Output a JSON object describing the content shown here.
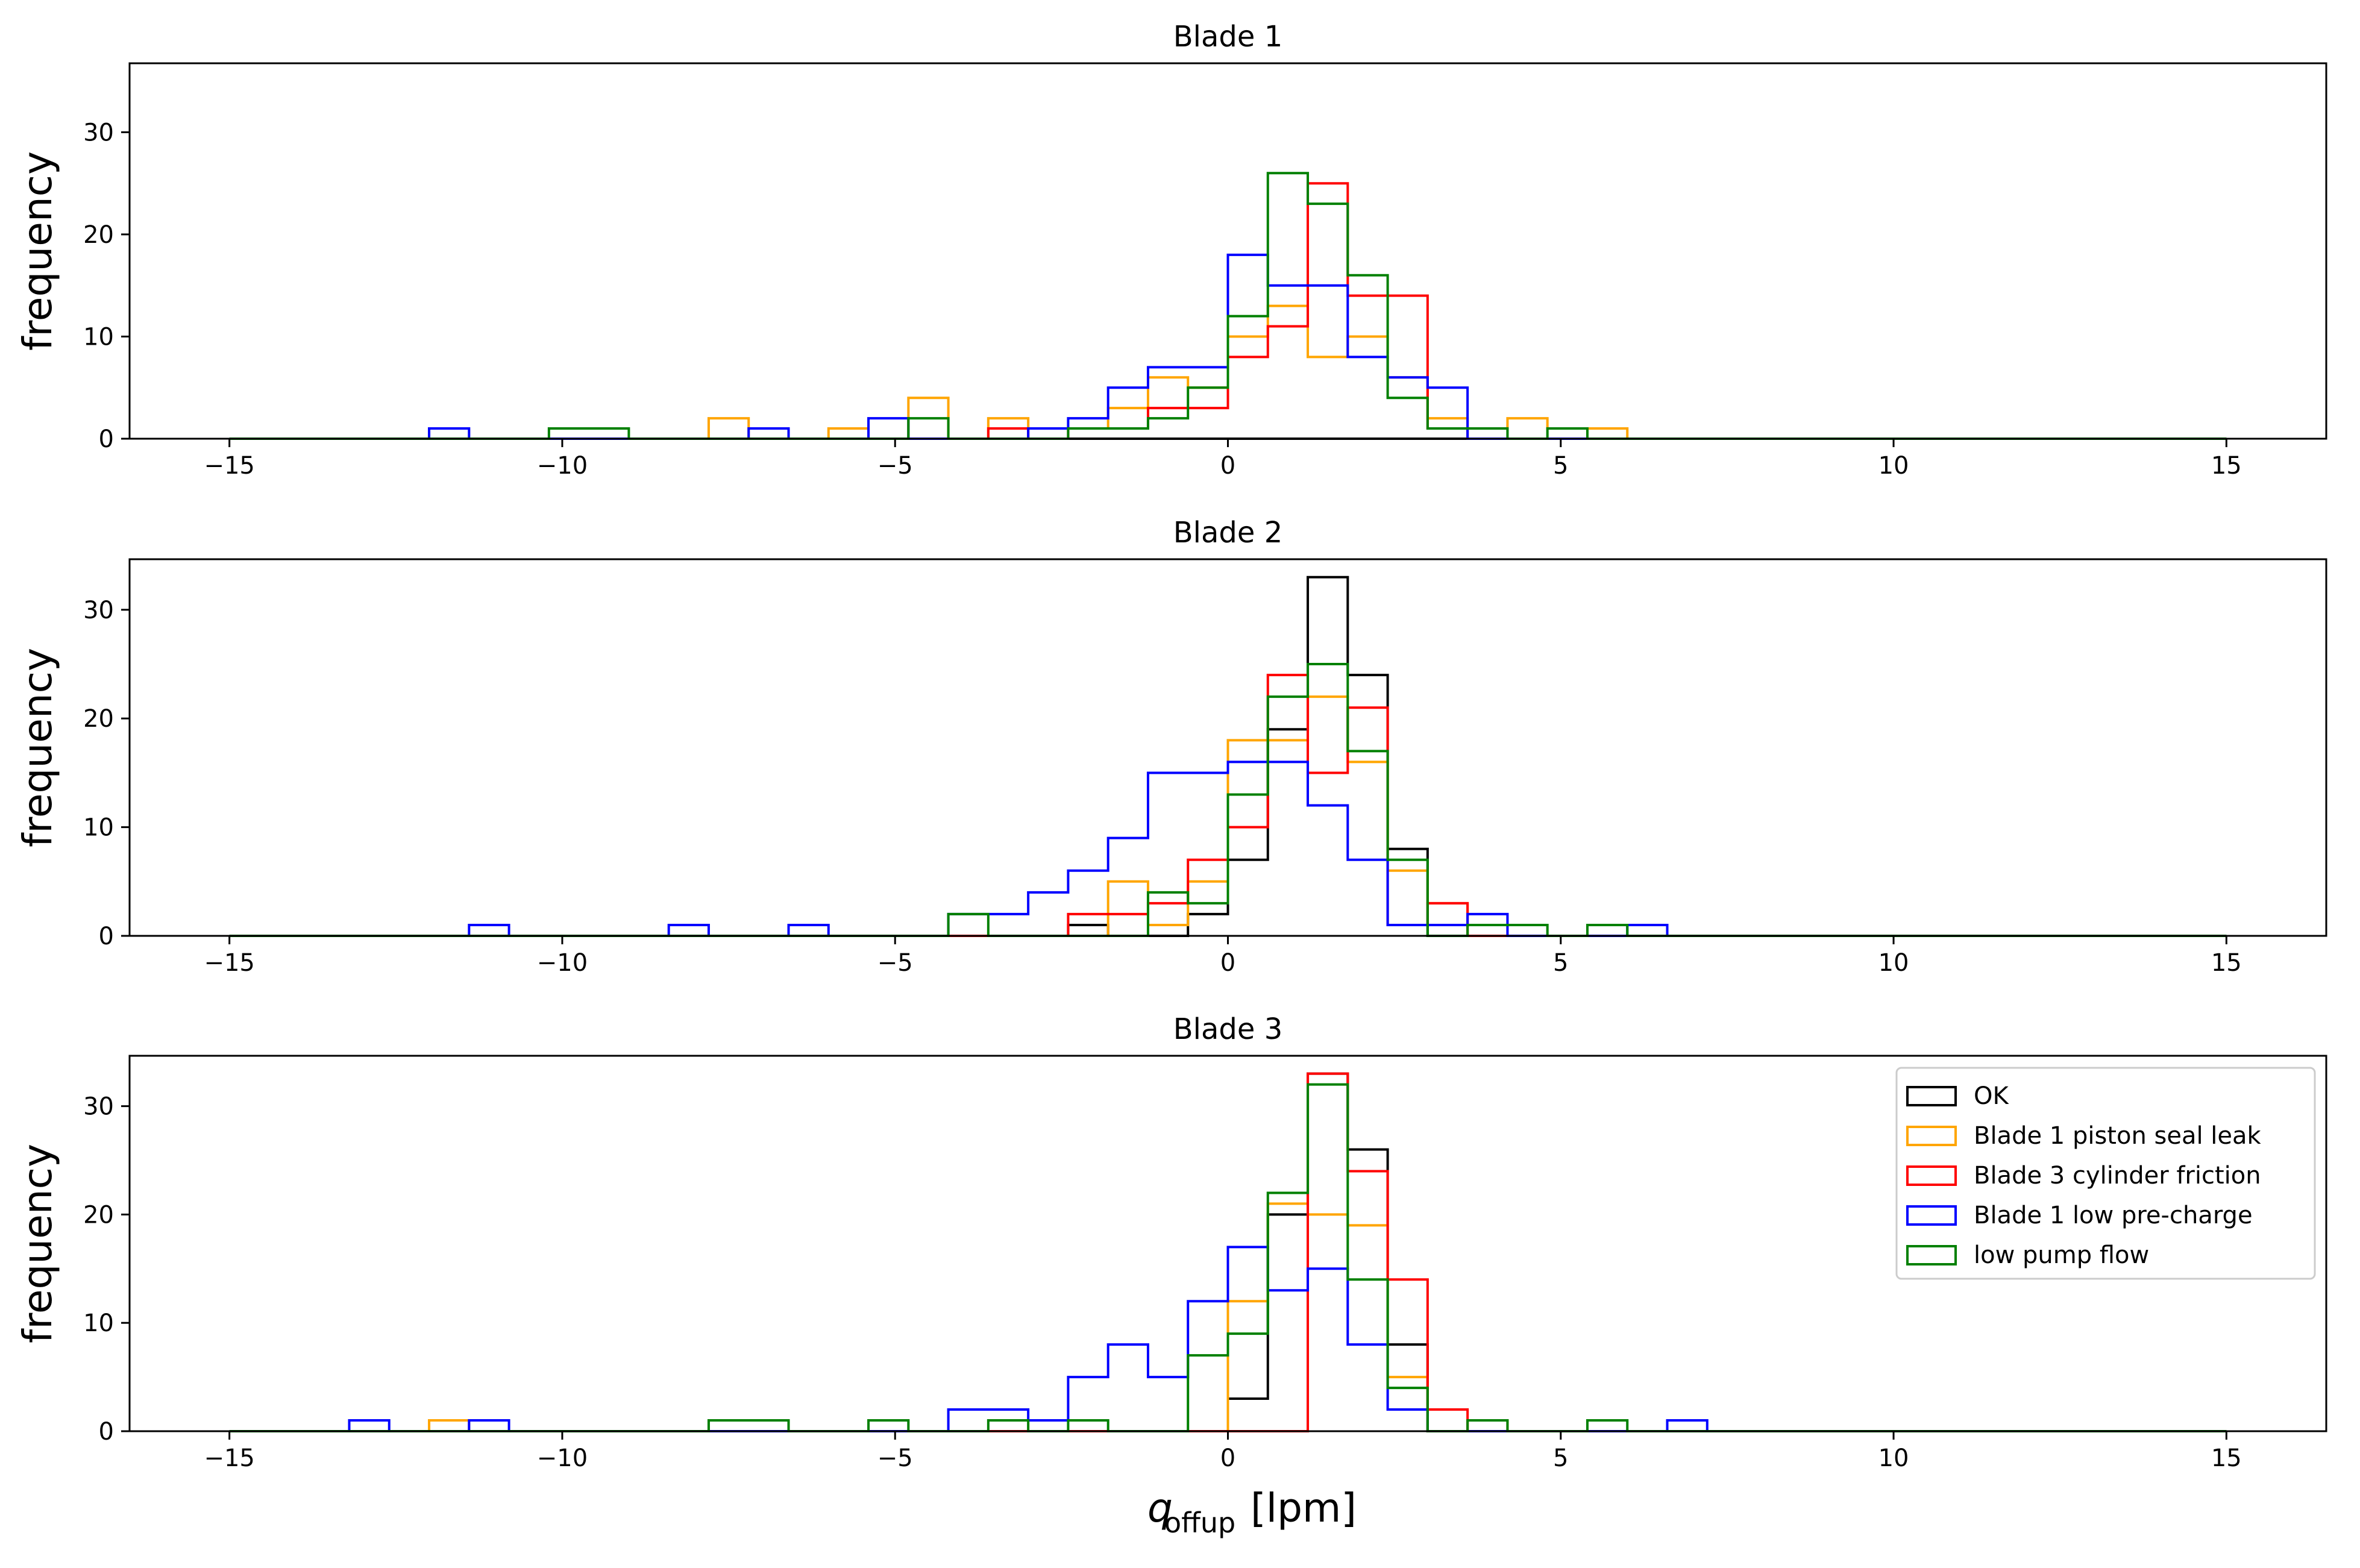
{
  "chart_data": {
    "type": "histogram",
    "layout": "3 rows x 1 column, shared axis style",
    "bins": {
      "start": -15,
      "end": 15,
      "count": 50,
      "width": 0.6
    },
    "xlim": [
      -16.5,
      16.5
    ],
    "xticks": [
      -15,
      -10,
      -5,
      0,
      5,
      10,
      15
    ],
    "xticklabels": [
      "−15",
      "−10",
      "−5",
      "0",
      "5",
      "10",
      "15"
    ],
    "xlabel_main": "q",
    "xlabel_sub": "offup",
    "xlabel_unit": "[lpm]",
    "legend": {
      "location": "upper right of Blade 3",
      "entries": [
        "OK",
        "Blade 1 piston seal leak",
        "Blade 3 cylinder friction",
        "Blade 1 low pre-charge",
        "low pump flow"
      ]
    },
    "subplots": [
      {
        "title": "Blade 1",
        "ylabel": "frequency",
        "ylim": [
          0,
          36.75
        ],
        "yticks": [
          0,
          10,
          20,
          30
        ],
        "series": [
          {
            "name": "OK",
            "color": "#000000",
            "counts": [
              0,
              0,
              0,
              0,
              0,
              0,
              0,
              0,
              0,
              0,
              0,
              0,
              0,
              0,
              0,
              0,
              0,
              0,
              0,
              0,
              0,
              0,
              0,
              0,
              0,
              0,
              0,
              0,
              0,
              0,
              0,
              0,
              0,
              0,
              0,
              0,
              0,
              0,
              0,
              0,
              0,
              0,
              0,
              0,
              0,
              0,
              0,
              0,
              0,
              0
            ]
          },
          {
            "name": "Blade 1 piston seal leak",
            "color": "#ffa500",
            "counts": [
              0,
              0,
              0,
              0,
              0,
              0,
              0,
              0,
              0,
              0,
              0,
              0,
              2,
              0,
              0,
              1,
              0,
              4,
              0,
              2,
              1,
              1,
              3,
              6,
              5,
              10,
              13,
              8,
              10,
              6,
              2,
              1,
              2,
              1,
              1,
              0,
              0,
              0,
              0,
              0,
              0,
              0,
              0,
              0,
              0,
              0,
              0,
              0,
              0,
              0
            ]
          },
          {
            "name": "Blade 3 cylinder friction",
            "color": "#ff0000",
            "counts": [
              0,
              0,
              0,
              0,
              0,
              0,
              0,
              0,
              0,
              0,
              0,
              0,
              0,
              0,
              0,
              0,
              0,
              0,
              0,
              1,
              0,
              1,
              1,
              3,
              3,
              8,
              11,
              25,
              14,
              14,
              1,
              0,
              0,
              0,
              0,
              0,
              0,
              0,
              0,
              0,
              0,
              0,
              0,
              0,
              0,
              0,
              0,
              0,
              0,
              0
            ]
          },
          {
            "name": "Blade 1 low pre-charge",
            "color": "#0000ff",
            "counts": [
              0,
              0,
              0,
              0,
              0,
              1,
              0,
              0,
              0,
              0,
              0,
              0,
              0,
              1,
              0,
              0,
              2,
              0,
              0,
              0,
              1,
              2,
              5,
              7,
              7,
              18,
              15,
              15,
              8,
              6,
              5,
              0,
              0,
              0,
              0,
              0,
              0,
              0,
              0,
              0,
              0,
              0,
              0,
              0,
              0,
              0,
              0,
              0,
              0,
              0
            ]
          },
          {
            "name": "low pump flow",
            "color": "#008000",
            "counts": [
              0,
              0,
              0,
              0,
              0,
              0,
              0,
              0,
              1,
              1,
              0,
              0,
              0,
              0,
              0,
              0,
              0,
              2,
              0,
              0,
              0,
              1,
              1,
              2,
              5,
              12,
              26,
              23,
              16,
              4,
              1,
              1,
              0,
              1,
              0,
              0,
              0,
              0,
              0,
              0,
              0,
              0,
              0,
              0,
              0,
              0,
              0,
              0,
              0,
              0
            ]
          }
        ]
      },
      {
        "title": "Blade 2",
        "ylabel": "frequency",
        "ylim": [
          0,
          34.65
        ],
        "yticks": [
          0,
          10,
          20,
          30
        ],
        "series": [
          {
            "name": "OK",
            "color": "#000000",
            "counts": [
              0,
              0,
              0,
              0,
              0,
              0,
              0,
              0,
              0,
              0,
              0,
              0,
              0,
              0,
              0,
              0,
              0,
              0,
              0,
              0,
              0,
              1,
              0,
              0,
              2,
              7,
              19,
              33,
              24,
              8,
              0,
              0,
              0,
              0,
              0,
              0,
              0,
              0,
              0,
              0,
              0,
              0,
              0,
              0,
              0,
              0,
              0,
              0,
              0,
              0
            ]
          },
          {
            "name": "Blade 1 piston seal leak",
            "color": "#ffa500",
            "counts": [
              0,
              0,
              0,
              0,
              0,
              0,
              0,
              0,
              0,
              0,
              0,
              0,
              0,
              0,
              0,
              0,
              0,
              0,
              0,
              0,
              0,
              0,
              5,
              1,
              5,
              18,
              18,
              22,
              16,
              6,
              3,
              0,
              0,
              0,
              0,
              0,
              0,
              0,
              0,
              0,
              0,
              0,
              0,
              0,
              0,
              0,
              0,
              0,
              0,
              0
            ]
          },
          {
            "name": "Blade 3 cylinder friction",
            "color": "#ff0000",
            "counts": [
              0,
              0,
              0,
              0,
              0,
              0,
              0,
              0,
              0,
              0,
              0,
              0,
              0,
              0,
              0,
              0,
              0,
              0,
              0,
              0,
              0,
              2,
              2,
              3,
              7,
              10,
              24,
              15,
              21,
              1,
              3,
              0,
              0,
              0,
              0,
              0,
              0,
              0,
              0,
              0,
              0,
              0,
              0,
              0,
              0,
              0,
              0,
              0,
              0,
              0
            ]
          },
          {
            "name": "Blade 1 low pre-charge",
            "color": "#0000ff",
            "counts": [
              0,
              0,
              0,
              0,
              0,
              0,
              1,
              0,
              0,
              0,
              0,
              1,
              0,
              0,
              1,
              0,
              0,
              0,
              2,
              2,
              4,
              6,
              9,
              15,
              15,
              16,
              16,
              12,
              7,
              1,
              1,
              2,
              0,
              0,
              0,
              1,
              0,
              0,
              0,
              0,
              0,
              0,
              0,
              0,
              0,
              0,
              0,
              0,
              0,
              0
            ]
          },
          {
            "name": "low pump flow",
            "color": "#008000",
            "counts": [
              0,
              0,
              0,
              0,
              0,
              0,
              0,
              0,
              0,
              0,
              0,
              0,
              0,
              0,
              0,
              0,
              0,
              0,
              2,
              0,
              0,
              0,
              0,
              4,
              3,
              13,
              22,
              25,
              17,
              7,
              0,
              1,
              1,
              0,
              1,
              0,
              0,
              0,
              0,
              0,
              0,
              0,
              0,
              0,
              0,
              0,
              0,
              0,
              0,
              0
            ]
          }
        ]
      },
      {
        "title": "Blade 3",
        "ylabel": "frequency",
        "ylim": [
          0,
          34.65
        ],
        "yticks": [
          0,
          10,
          20,
          30
        ],
        "series": [
          {
            "name": "OK",
            "color": "#000000",
            "counts": [
              0,
              0,
              0,
              0,
              0,
              0,
              0,
              0,
              0,
              0,
              0,
              0,
              0,
              0,
              0,
              0,
              0,
              0,
              0,
              0,
              0,
              0,
              0,
              0,
              0,
              3,
              20,
              33,
              26,
              8,
              0,
              0,
              0,
              0,
              0,
              0,
              0,
              0,
              0,
              0,
              0,
              0,
              0,
              0,
              0,
              0,
              0,
              0,
              0,
              0
            ]
          },
          {
            "name": "Blade 1 piston seal leak",
            "color": "#ffa500",
            "counts": [
              0,
              0,
              0,
              0,
              0,
              1,
              0,
              0,
              0,
              0,
              0,
              0,
              0,
              0,
              0,
              0,
              0,
              0,
              0,
              0,
              0,
              0,
              0,
              0,
              0,
              12,
              21,
              20,
              19,
              5,
              0,
              1,
              0,
              0,
              0,
              0,
              0,
              0,
              0,
              0,
              0,
              0,
              0,
              0,
              0,
              0,
              0,
              0,
              0,
              0
            ]
          },
          {
            "name": "Blade 3 cylinder friction",
            "color": "#ff0000",
            "counts": [
              0,
              0,
              0,
              0,
              0,
              0,
              0,
              0,
              0,
              0,
              0,
              0,
              0,
              0,
              0,
              0,
              0,
              0,
              0,
              0,
              0,
              0,
              0,
              0,
              0,
              0,
              0,
              33,
              24,
              14,
              2,
              0,
              0,
              0,
              0,
              0,
              0,
              0,
              0,
              0,
              0,
              0,
              0,
              0,
              0,
              0,
              0,
              0,
              0,
              0
            ]
          },
          {
            "name": "Blade 1 low pre-charge",
            "color": "#0000ff",
            "counts": [
              0,
              0,
              0,
              1,
              0,
              0,
              1,
              0,
              0,
              0,
              0,
              0,
              0,
              0,
              0,
              0,
              0,
              0,
              2,
              2,
              1,
              5,
              8,
              5,
              12,
              17,
              13,
              15,
              8,
              2,
              0,
              0,
              0,
              0,
              0,
              0,
              1,
              0,
              0,
              0,
              0,
              0,
              0,
              0,
              0,
              0,
              0,
              0,
              0,
              0
            ]
          },
          {
            "name": "low pump flow",
            "color": "#008000",
            "counts": [
              0,
              0,
              0,
              0,
              0,
              0,
              0,
              0,
              0,
              0,
              0,
              0,
              1,
              1,
              0,
              0,
              1,
              0,
              0,
              1,
              0,
              1,
              0,
              0,
              7,
              9,
              22,
              32,
              14,
              4,
              0,
              1,
              0,
              0,
              1,
              0,
              0,
              0,
              0,
              0,
              0,
              0,
              0,
              0,
              0,
              0,
              0,
              0,
              0,
              0
            ]
          }
        ]
      }
    ]
  }
}
